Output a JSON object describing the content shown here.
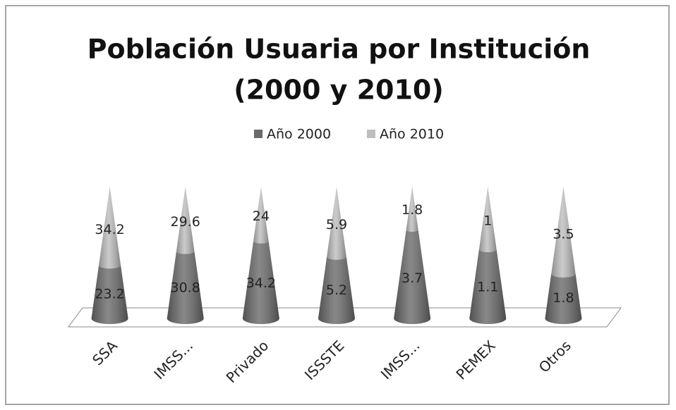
{
  "chart_data": {
    "type": "cone",
    "stacked": "percent",
    "title": [
      "Población Usuaria por Institución",
      "(2000 y 2010)"
    ],
    "categories": [
      "SSA",
      "IMSS...",
      "Privado",
      "ISSSTE",
      "IMSS...",
      "PEMEX",
      "Otros"
    ],
    "series": [
      {
        "name": "Año 2000",
        "color": "#6a6a6a",
        "values": [
          23.2,
          30.8,
          34.2,
          5.2,
          3.7,
          1.1,
          1.8
        ]
      },
      {
        "name": "Año 2010",
        "color": "#bdbdbd",
        "values": [
          34.2,
          29.6,
          24,
          5.9,
          1.8,
          1,
          3.5
        ]
      }
    ],
    "legend": "top"
  }
}
